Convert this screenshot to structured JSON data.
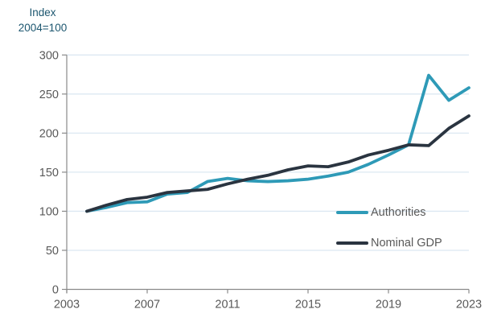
{
  "header": {
    "title_line1": "Index",
    "title_line2": "2004=100"
  },
  "chart_data": {
    "type": "line",
    "title": "Index 2004=100",
    "xlabel": "",
    "ylabel": "Index 2004=100",
    "x": [
      2004,
      2005,
      2006,
      2007,
      2008,
      2009,
      2010,
      2011,
      2012,
      2013,
      2014,
      2015,
      2016,
      2017,
      2018,
      2019,
      2020,
      2021,
      2022,
      2023
    ],
    "series": [
      {
        "name": "Authorities",
        "color": "#2E9AB7",
        "values": [
          100,
          105,
          111,
          112,
          122,
          124,
          138,
          142,
          139,
          138,
          139,
          141,
          145,
          150,
          160,
          172,
          185,
          274,
          242,
          258
        ]
      },
      {
        "name": "Nominal GDP",
        "color": "#2A3440",
        "values": [
          100,
          108,
          115,
          118,
          124,
          126,
          128,
          135,
          141,
          146,
          153,
          158,
          157,
          163,
          172,
          178,
          185,
          184,
          206,
          222
        ]
      }
    ],
    "xlim": [
      2003,
      2023
    ],
    "ylim": [
      0,
      300
    ],
    "x_ticks": [
      "2003",
      "2007",
      "2011",
      "2015",
      "2019",
      "2023"
    ],
    "x_tick_years": [
      2003,
      2007,
      2011,
      2015,
      2019,
      2023
    ],
    "y_ticks": [
      "0",
      "50",
      "100",
      "150",
      "200",
      "250",
      "300"
    ],
    "y_tick_values": [
      0,
      50,
      100,
      150,
      200,
      250,
      300
    ],
    "grid": "horizontal",
    "legend_position": "inside-right"
  },
  "colors": {
    "gridline": "#DCE8F2",
    "axis": "#8A8A8A",
    "tick_label": "#595959",
    "title_text": "#1C566F",
    "legend_text": "#595959",
    "background": "#FFFFFF"
  }
}
